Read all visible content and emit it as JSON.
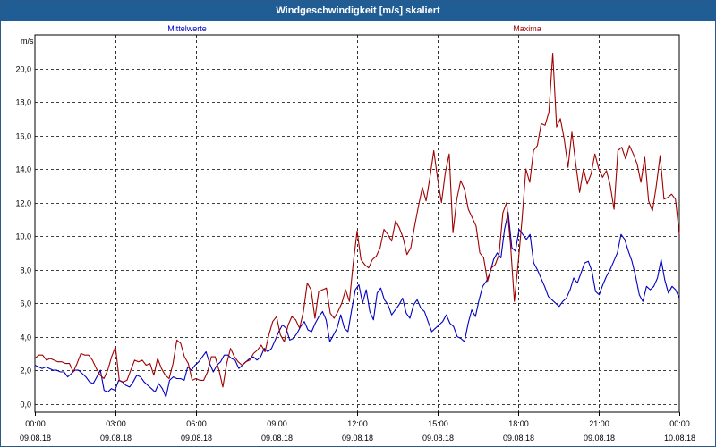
{
  "window": {
    "title": "Windgeschwindigkeit [m/s] skaliert"
  },
  "chart_data": {
    "type": "line",
    "title": "Windgeschwindigkeit [m/s] skaliert",
    "ylabel": "m/s",
    "xlabel": "",
    "ylim": [
      -0.5,
      22.0
    ],
    "xlim": [
      0,
      24
    ],
    "grid": true,
    "legend_placement": "top",
    "yticks": [
      "0,0",
      "2,0",
      "4,0",
      "6,0",
      "8,0",
      "10,0",
      "12,0",
      "14,0",
      "16,0",
      "18,0",
      "20,0"
    ],
    "xticks": [
      {
        "time": "00:00",
        "date": "09.08.18"
      },
      {
        "time": "03:00",
        "date": "09.08.18"
      },
      {
        "time": "06:00",
        "date": "09.08.18"
      },
      {
        "time": "09:00",
        "date": "09.08.18"
      },
      {
        "time": "12:00",
        "date": "09.08.18"
      },
      {
        "time": "15:00",
        "date": "09.08.18"
      },
      {
        "time": "18:00",
        "date": "09.08.18"
      },
      {
        "time": "21:00",
        "date": "09.08.18"
      },
      {
        "time": "00:00",
        "date": "10.08.18"
      }
    ],
    "series": [
      {
        "name": "Mittelwerte",
        "color": "#0000c0",
        "values": [
          2.3,
          2.2,
          2.1,
          2.2,
          2.1,
          2.0,
          2.0,
          1.9,
          1.9,
          1.6,
          1.8,
          2.0,
          2.0,
          1.8,
          1.6,
          1.3,
          1.2,
          1.6,
          2.0,
          0.8,
          0.7,
          0.9,
          0.8,
          1.4,
          1.3,
          1.1,
          1.0,
          1.3,
          1.7,
          1.6,
          1.3,
          1.1,
          0.9,
          0.7,
          1.2,
          0.9,
          0.4,
          1.4,
          1.6,
          1.5,
          1.5,
          1.4,
          2.2,
          2.0,
          2.3,
          2.5,
          2.8,
          3.1,
          2.4,
          1.9,
          2.3,
          2.5,
          2.9,
          2.9,
          2.7,
          2.6,
          2.1,
          2.3,
          2.5,
          2.7,
          2.8,
          2.6,
          2.8,
          3.3,
          3.1,
          3.3,
          3.8,
          4.3,
          4.7,
          4.5,
          3.8,
          3.9,
          4.2,
          4.6,
          4.9,
          4.4,
          4.3,
          4.8,
          5.2,
          5.5,
          5.0,
          3.7,
          4.1,
          4.5,
          5.3,
          4.5,
          4.3,
          5.6,
          6.8,
          7.1,
          6.0,
          6.8,
          5.5,
          5.0,
          6.6,
          6.9,
          6.2,
          5.9,
          5.3,
          5.6,
          5.9,
          6.3,
          5.4,
          5.1,
          5.9,
          6.2,
          5.7,
          5.5,
          4.9,
          4.3,
          4.5,
          4.7,
          4.9,
          5.3,
          4.8,
          4.6,
          4.0,
          3.9,
          3.7,
          4.8,
          5.6,
          5.2,
          6.2,
          7.0,
          7.3,
          7.8,
          8.6,
          9.0,
          8.7,
          10.4,
          11.4,
          9.3,
          9.1,
          10.4,
          10.1,
          9.8,
          10.1,
          8.4,
          8.0,
          7.5,
          7.0,
          6.4,
          6.2,
          6.0,
          5.8,
          6.1,
          6.3,
          6.8,
          7.5,
          7.2,
          7.8,
          8.4,
          8.5,
          7.9,
          6.7,
          6.5,
          7.1,
          7.6,
          8.0,
          8.5,
          9.0,
          10.1,
          9.8,
          9.1,
          8.5,
          7.6,
          6.5,
          6.1,
          7.0,
          6.8,
          7.0,
          7.5,
          8.6,
          7.4,
          6.6,
          7.0,
          6.8,
          6.3
        ],
        "smooth": true
      },
      {
        "name": "Maxima",
        "color": "#a00000",
        "values": [
          2.7,
          2.9,
          2.9,
          2.6,
          2.7,
          2.6,
          2.5,
          2.5,
          2.4,
          2.4,
          1.9,
          2.4,
          3.0,
          2.9,
          2.9,
          2.6,
          2.1,
          1.7,
          1.5,
          2.0,
          2.8,
          3.4,
          1.4,
          1.3,
          1.4,
          2.0,
          2.6,
          2.5,
          2.6,
          2.3,
          2.4,
          1.7,
          2.7,
          2.1,
          1.7,
          1.5,
          2.4,
          3.8,
          3.6,
          2.8,
          2.4,
          1.4,
          1.5,
          1.4,
          1.4,
          1.9,
          2.8,
          2.8,
          2.0,
          1.0,
          2.4,
          3.3,
          2.8,
          2.5,
          2.3,
          2.5,
          2.6,
          3.0,
          3.2,
          3.5,
          3.1,
          4.1,
          4.9,
          5.2,
          4.1,
          3.7,
          4.7,
          5.2,
          5.0,
          4.5,
          5.5,
          7.2,
          6.8,
          5.1,
          6.7,
          6.8,
          6.9,
          5.4,
          5.1,
          5.5,
          6.0,
          6.8,
          6.1,
          8.4,
          10.3,
          8.6,
          8.3,
          8.1,
          8.6,
          8.8,
          9.3,
          10.4,
          10.1,
          9.7,
          10.9,
          10.5,
          9.9,
          8.9,
          9.3,
          10.6,
          11.8,
          12.9,
          12.1,
          13.5,
          15.1,
          13.4,
          12.0,
          13.8,
          14.9,
          10.2,
          12.2,
          13.3,
          12.8,
          11.6,
          11.1,
          10.6,
          9.0,
          8.7,
          7.3,
          8.1,
          8.3,
          8.9,
          11.4,
          12.0,
          9.5,
          6.1,
          8.4,
          11.0,
          14.0,
          13.2,
          15.1,
          15.4,
          16.7,
          16.6,
          17.4,
          20.9,
          16.5,
          17.0,
          15.8,
          14.1,
          16.2,
          14.3,
          12.6,
          14.0,
          13.1,
          13.7,
          14.9,
          14.0,
          13.5,
          13.9,
          13.0,
          11.6,
          15.1,
          15.3,
          14.6,
          15.4,
          14.9,
          14.3,
          13.2,
          14.7,
          12.1,
          11.5,
          13.0,
          14.8,
          12.2,
          12.3,
          12.5,
          12.2,
          10.1
        ],
        "smooth": false
      }
    ]
  }
}
